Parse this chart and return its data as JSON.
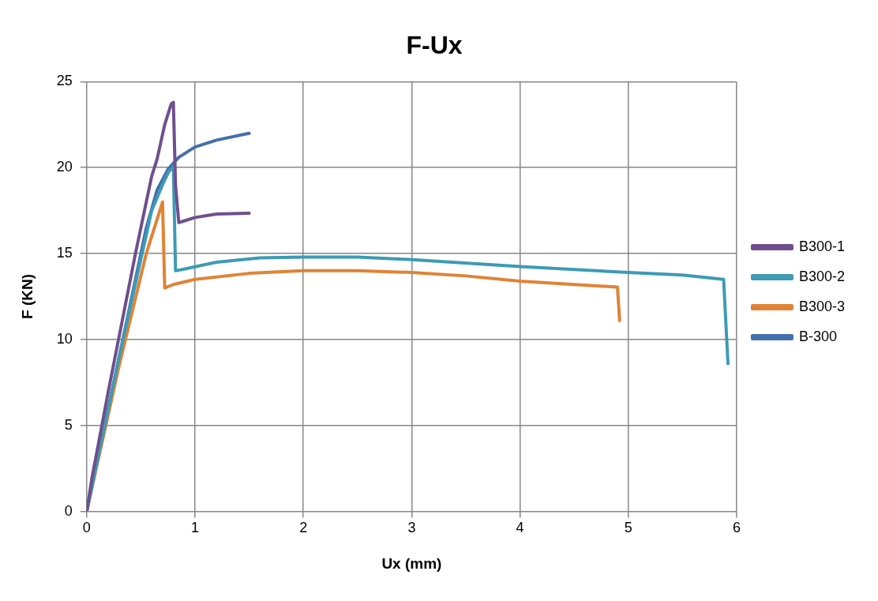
{
  "chart_data": {
    "type": "line",
    "title": "F-Ux",
    "xlabel": "Ux (mm)",
    "ylabel": "F (KN)",
    "xlim": [
      0,
      6
    ],
    "xticks": [
      0,
      1,
      2,
      3,
      4,
      5,
      6
    ],
    "ylim": [
      0,
      25
    ],
    "yticks": [
      0,
      5,
      10,
      15,
      20,
      25
    ],
    "grid": true,
    "legend": "right",
    "marker": "none",
    "line_style": "solid",
    "series": [
      {
        "name": "B300-1",
        "color": "#6e4f8e",
        "x": [
          0,
          0.05,
          0.2,
          0.45,
          0.6,
          0.65,
          0.72,
          0.78,
          0.8,
          0.82,
          0.85,
          0.9,
          1.0,
          1.2,
          1.5
        ],
        "values": [
          0,
          2,
          7,
          15,
          19.5,
          20.5,
          22.5,
          23.7,
          23.8,
          19,
          16.8,
          16.9,
          17.1,
          17.3,
          17.35
        ]
      },
      {
        "name": "B300-2",
        "color": "#3d9bb3",
        "x": [
          0,
          0.3,
          0.6,
          0.7,
          0.76,
          0.8,
          0.82,
          0.9,
          1.2,
          1.6,
          2,
          2.5,
          3,
          4,
          5,
          5.5,
          5.88,
          5.92
        ],
        "values": [
          0,
          9,
          17.5,
          19,
          19.8,
          20,
          14,
          14.1,
          14.5,
          14.75,
          14.8,
          14.8,
          14.65,
          14.25,
          13.9,
          13.75,
          13.5,
          8.6
        ]
      },
      {
        "name": "B300-3",
        "color": "#e08336",
        "x": [
          0,
          0.3,
          0.55,
          0.7,
          0.72,
          0.8,
          1,
          1.5,
          2,
          2.5,
          3,
          3.5,
          4,
          4.5,
          4.9,
          4.92
        ],
        "values": [
          0,
          8.5,
          15,
          18,
          13,
          13.2,
          13.5,
          13.85,
          14,
          14,
          13.9,
          13.7,
          13.4,
          13.2,
          13.05,
          11.1
        ]
      },
      {
        "name": "B-300",
        "color": "#4270ad",
        "x": [
          0,
          0.2,
          0.4,
          0.55,
          0.65,
          0.75,
          0.85,
          1,
          1.2,
          1.5
        ],
        "values": [
          0,
          6,
          12,
          16.5,
          18.7,
          19.9,
          20.6,
          21.2,
          21.6,
          22
        ]
      }
    ]
  }
}
